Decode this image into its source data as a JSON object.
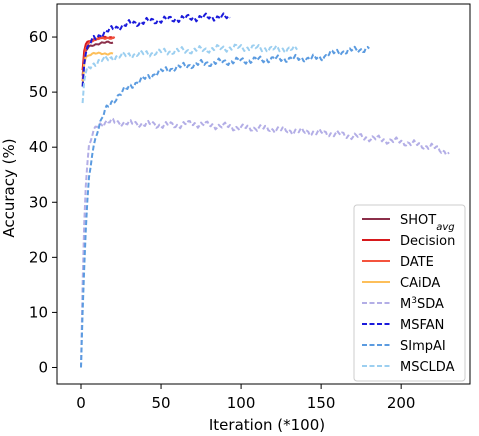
{
  "chart_data": {
    "type": "line",
    "title": "",
    "xlabel": "Iteration (*100)",
    "ylabel": "Accuracy (%)",
    "xlim": [
      -15,
      243
    ],
    "ylim": [
      -3,
      66
    ],
    "xticks": [
      "0",
      "50",
      "100",
      "150",
      "200"
    ],
    "xtick_values": [
      0,
      50,
      100,
      150,
      200
    ],
    "yticks": [
      "0",
      "10",
      "20",
      "30",
      "40",
      "50",
      "60"
    ],
    "ytick_values": [
      0,
      10,
      20,
      30,
      40,
      50,
      60
    ],
    "grid": false,
    "legend_position": "lower-right",
    "series": [
      {
        "name": "SHOT",
        "name_sub": "avg",
        "color": "#8B2F4A",
        "dash": "solid",
        "points": [
          [
            1,
            53
          ],
          [
            2,
            56
          ],
          [
            3,
            57.5
          ],
          [
            5,
            58.2
          ],
          [
            8,
            58.6
          ],
          [
            12,
            58.9
          ],
          [
            16,
            59
          ],
          [
            20,
            59
          ]
        ]
      },
      {
        "name": "Decision",
        "color": "#D7191C",
        "dash": "solid",
        "points": [
          [
            1,
            54
          ],
          [
            2,
            57.5
          ],
          [
            3,
            58.7
          ],
          [
            5,
            59.3
          ],
          [
            8,
            59.6
          ],
          [
            12,
            59.8
          ],
          [
            16,
            59.9
          ],
          [
            21,
            60
          ]
        ]
      },
      {
        "name": "DATE",
        "color": "#F4533D",
        "dash": "solid",
        "points": [
          [
            1,
            52
          ],
          [
            2,
            56
          ],
          [
            3,
            58
          ],
          [
            5,
            59
          ],
          [
            8,
            59.5
          ],
          [
            12,
            59.7
          ],
          [
            16,
            59.8
          ],
          [
            21,
            59.9
          ]
        ]
      },
      {
        "name": "CAiDA",
        "color": "#FDBF5A",
        "dash": "solid",
        "points": [
          [
            1,
            51
          ],
          [
            2,
            55
          ],
          [
            3,
            56.3
          ],
          [
            5,
            56.8
          ],
          [
            8,
            57
          ],
          [
            12,
            57
          ],
          [
            16,
            57
          ],
          [
            20,
            57
          ]
        ]
      },
      {
        "name": "M3SDA",
        "name_sup": "3",
        "color": "#B3AEE6",
        "dash": "dashed",
        "points": [
          [
            0,
            0
          ],
          [
            1,
            15
          ],
          [
            2,
            26
          ],
          [
            3,
            33
          ],
          [
            4,
            37
          ],
          [
            5,
            40
          ],
          [
            7,
            42
          ],
          [
            10,
            44
          ],
          [
            15,
            44.5
          ],
          [
            20,
            44.6
          ],
          [
            30,
            44.3
          ],
          [
            40,
            44.2
          ],
          [
            50,
            44
          ],
          [
            60,
            44
          ],
          [
            70,
            44.3
          ],
          [
            80,
            44
          ],
          [
            90,
            43.8
          ],
          [
            100,
            43.5
          ],
          [
            110,
            43.5
          ],
          [
            120,
            43.3
          ],
          [
            130,
            43
          ],
          [
            140,
            42.8
          ],
          [
            150,
            42.6
          ],
          [
            160,
            42.4
          ],
          [
            170,
            42
          ],
          [
            180,
            41.7
          ],
          [
            190,
            41.3
          ],
          [
            200,
            41
          ],
          [
            210,
            40.5
          ],
          [
            220,
            40
          ],
          [
            230,
            39
          ]
        ]
      },
      {
        "name": "MSFAN",
        "color": "#1A1ADB",
        "dash": "dashed",
        "points": [
          [
            1,
            51
          ],
          [
            2,
            55
          ],
          [
            3,
            57
          ],
          [
            5,
            58.5
          ],
          [
            8,
            59.7
          ],
          [
            12,
            60.4
          ],
          [
            16,
            61
          ],
          [
            20,
            61.5
          ],
          [
            25,
            62
          ],
          [
            30,
            62.4
          ],
          [
            40,
            62.8
          ],
          [
            50,
            63.1
          ],
          [
            60,
            63.3
          ],
          [
            70,
            63.5
          ],
          [
            80,
            63.6
          ],
          [
            90,
            63.6
          ],
          [
            93,
            63.5
          ]
        ]
      },
      {
        "name": "SImpAI",
        "color": "#5B9BE0",
        "dash": "dashed",
        "points": [
          [
            0,
            0
          ],
          [
            1,
            10
          ],
          [
            2,
            18
          ],
          [
            3,
            25
          ],
          [
            4,
            30
          ],
          [
            5,
            34
          ],
          [
            7,
            39
          ],
          [
            10,
            43
          ],
          [
            15,
            46.5
          ],
          [
            20,
            48.5
          ],
          [
            30,
            51
          ],
          [
            40,
            52.5
          ],
          [
            50,
            53.8
          ],
          [
            60,
            54.5
          ],
          [
            70,
            55
          ],
          [
            80,
            55.3
          ],
          [
            90,
            55.5
          ],
          [
            100,
            55.7
          ],
          [
            120,
            56
          ],
          [
            140,
            56.1
          ],
          [
            150,
            56.2
          ],
          [
            155,
            57
          ],
          [
            160,
            57.2
          ],
          [
            170,
            57.6
          ],
          [
            180,
            57.9
          ]
        ]
      },
      {
        "name": "MSCLDA",
        "color": "#9CCFF0",
        "dash": "dashed",
        "points": [
          [
            1,
            48
          ],
          [
            2,
            52
          ],
          [
            3,
            53.5
          ],
          [
            5,
            54.5
          ],
          [
            8,
            55.2
          ],
          [
            12,
            55.7
          ],
          [
            16,
            56
          ],
          [
            20,
            56.3
          ],
          [
            30,
            56.8
          ],
          [
            40,
            57
          ],
          [
            50,
            57.3
          ],
          [
            60,
            57.5
          ],
          [
            70,
            57.6
          ],
          [
            80,
            57.8
          ],
          [
            90,
            58
          ],
          [
            100,
            58.1
          ],
          [
            110,
            58
          ],
          [
            120,
            57.8
          ],
          [
            130,
            57.8
          ],
          [
            135,
            57.7
          ]
        ]
      }
    ]
  }
}
